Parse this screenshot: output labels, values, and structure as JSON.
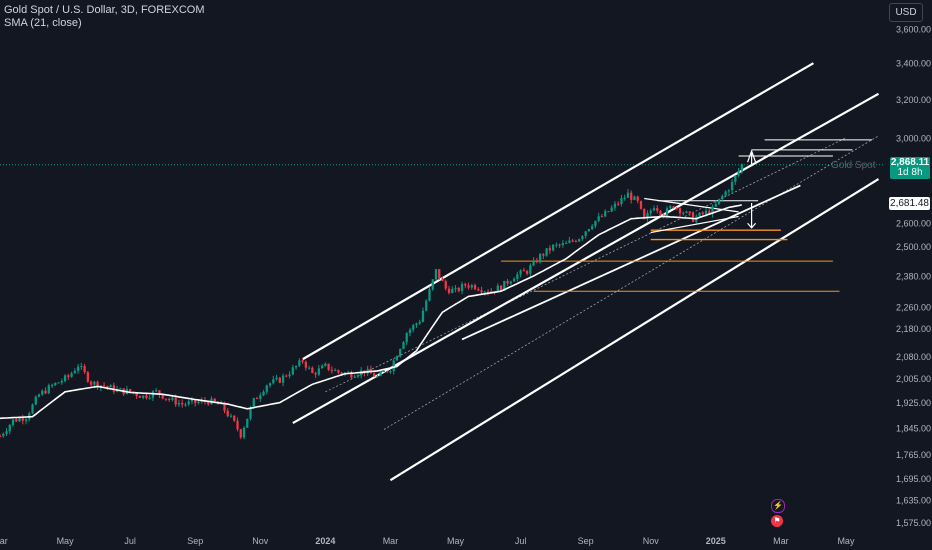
{
  "legend": {
    "symbol": "Gold Spot / U.S. Dollar, 3D, FOREXCOM",
    "indicator": "SMA (21, close)"
  },
  "currency_label": "USD",
  "price_tag": {
    "price": "2,868.11",
    "countdown": "1d 8h"
  },
  "sma_tag": "2,681.48",
  "symbol_overlay_label": "Gold Spot",
  "colors": {
    "background": "#131722",
    "up": "#089981",
    "down": "#f23645",
    "sma": "#ffffff",
    "level": "#f7931a",
    "grid": "#1e222d"
  },
  "chart_data": {
    "type": "candlestick",
    "title": "Gold Spot / U.S. Dollar, 3D, FOREXCOM",
    "y_scale": "log",
    "ylim": [
      1560,
      3780
    ],
    "y_ticks": [
      "3,600.00",
      "3,400.00",
      "3,200.00",
      "3,000.00",
      "2,868.11",
      "2,681.48",
      "2,600.00",
      "2,500.00",
      "2,380.00",
      "2,260.00",
      "2,180.00",
      "2,080.00",
      "2,005.00",
      "1,925.00",
      "1,845.00",
      "1,765.00",
      "1,695.00",
      "1,635.00",
      "1,575.00"
    ],
    "x_ticks": [
      "Mar",
      "May",
      "Jul",
      "Sep",
      "Nov",
      "2024",
      "Mar",
      "May",
      "Jul",
      "Sep",
      "Nov",
      "2025",
      "Mar",
      "May"
    ],
    "x_tick_months": [
      0,
      2,
      4,
      6,
      8,
      10,
      12,
      14,
      16,
      18,
      20,
      22,
      24,
      26
    ],
    "x_range_months": [
      0,
      27.2
    ],
    "price_anchors": [
      [
        0.0,
        1820
      ],
      [
        0.4,
        1868
      ],
      [
        0.8,
        1880
      ],
      [
        1.2,
        1950
      ],
      [
        1.6,
        1980
      ],
      [
        2.1,
        2010
      ],
      [
        2.4,
        2050
      ],
      [
        2.8,
        1990
      ],
      [
        3.2,
        1980
      ],
      [
        3.6,
        1965
      ],
      [
        4.0,
        1960
      ],
      [
        4.4,
        1945
      ],
      [
        4.8,
        1960
      ],
      [
        5.2,
        1935
      ],
      [
        5.6,
        1920
      ],
      [
        6.0,
        1925
      ],
      [
        6.4,
        1930
      ],
      [
        6.8,
        1915
      ],
      [
        7.2,
        1860
      ],
      [
        7.4,
        1825
      ],
      [
        7.8,
        1930
      ],
      [
        8.2,
        1985
      ],
      [
        8.6,
        2000
      ],
      [
        9.0,
        2035
      ],
      [
        9.3,
        2065
      ],
      [
        9.6,
        2020
      ],
      [
        10.0,
        2045
      ],
      [
        10.4,
        2025
      ],
      [
        10.8,
        2020
      ],
      [
        11.2,
        2030
      ],
      [
        11.6,
        2010
      ],
      [
        12.0,
        2040
      ],
      [
        12.5,
        2165
      ],
      [
        12.9,
        2210
      ],
      [
        13.2,
        2320
      ],
      [
        13.4,
        2400
      ],
      [
        13.7,
        2330
      ],
      [
        14.0,
        2320
      ],
      [
        14.3,
        2345
      ],
      [
        14.6,
        2340
      ],
      [
        15.0,
        2320
      ],
      [
        15.4,
        2335
      ],
      [
        15.8,
        2380
      ],
      [
        16.2,
        2400
      ],
      [
        16.6,
        2460
      ],
      [
        17.0,
        2500
      ],
      [
        17.4,
        2510
      ],
      [
        17.8,
        2540
      ],
      [
        18.2,
        2600
      ],
      [
        18.6,
        2640
      ],
      [
        19.0,
        2690
      ],
      [
        19.3,
        2730
      ],
      [
        19.6,
        2690
      ],
      [
        19.8,
        2610
      ],
      [
        20.1,
        2680
      ],
      [
        20.4,
        2640
      ],
      [
        20.7,
        2680
      ],
      [
        21.0,
        2650
      ],
      [
        21.3,
        2620
      ],
      [
        21.6,
        2640
      ],
      [
        21.9,
        2660
      ],
      [
        22.2,
        2720
      ],
      [
        22.5,
        2780
      ],
      [
        22.8,
        2868
      ]
    ],
    "sma": {
      "name": "SMA (21, close)",
      "anchors": [
        [
          0.0,
          1875
        ],
        [
          1.0,
          1880
        ],
        [
          2.0,
          1960
        ],
        [
          3.0,
          1978
        ],
        [
          4.0,
          1958
        ],
        [
          5.0,
          1952
        ],
        [
          6.0,
          1935
        ],
        [
          7.0,
          1920
        ],
        [
          7.6,
          1905
        ],
        [
          8.6,
          1925
        ],
        [
          9.6,
          1985
        ],
        [
          10.6,
          2020
        ],
        [
          11.6,
          2030
        ],
        [
          12.2,
          2045
        ],
        [
          12.8,
          2100
        ],
        [
          13.6,
          2240
        ],
        [
          14.4,
          2300
        ],
        [
          15.4,
          2320
        ],
        [
          16.4,
          2380
        ],
        [
          17.4,
          2450
        ],
        [
          18.4,
          2550
        ],
        [
          19.4,
          2620
        ],
        [
          20.4,
          2630
        ],
        [
          21.4,
          2620
        ],
        [
          22.4,
          2670
        ],
        [
          22.8,
          2681
        ]
      ]
    },
    "drawings": {
      "channel_lines": [
        [
          [
            9.3,
            2070
          ],
          [
            25.0,
            3400
          ]
        ],
        [
          [
            9.0,
            1860
          ],
          [
            27.0,
            3230
          ]
        ],
        [
          [
            12.0,
            1690
          ],
          [
            27.0,
            2800
          ]
        ]
      ],
      "inner_lines": [
        [
          [
            10.0,
            1960
          ],
          [
            26.0,
            3000
          ]
        ],
        [
          [
            11.8,
            1840
          ],
          [
            27.0,
            3010
          ]
        ],
        [
          [
            14.2,
            2140
          ],
          [
            24.6,
            2770
          ]
        ]
      ],
      "horizontal_levels_white": [
        2990,
        2940,
        2910,
        2700
      ],
      "horizontal_levels_orange": [
        2570,
        2530,
        2440,
        2320
      ],
      "pennant": {
        "upper": [
          [
            19.8,
            2710
          ],
          [
            22.7,
            2650
          ]
        ],
        "lower": [
          [
            20.0,
            2560
          ],
          [
            22.7,
            2630
          ]
        ]
      }
    },
    "grid": false
  }
}
